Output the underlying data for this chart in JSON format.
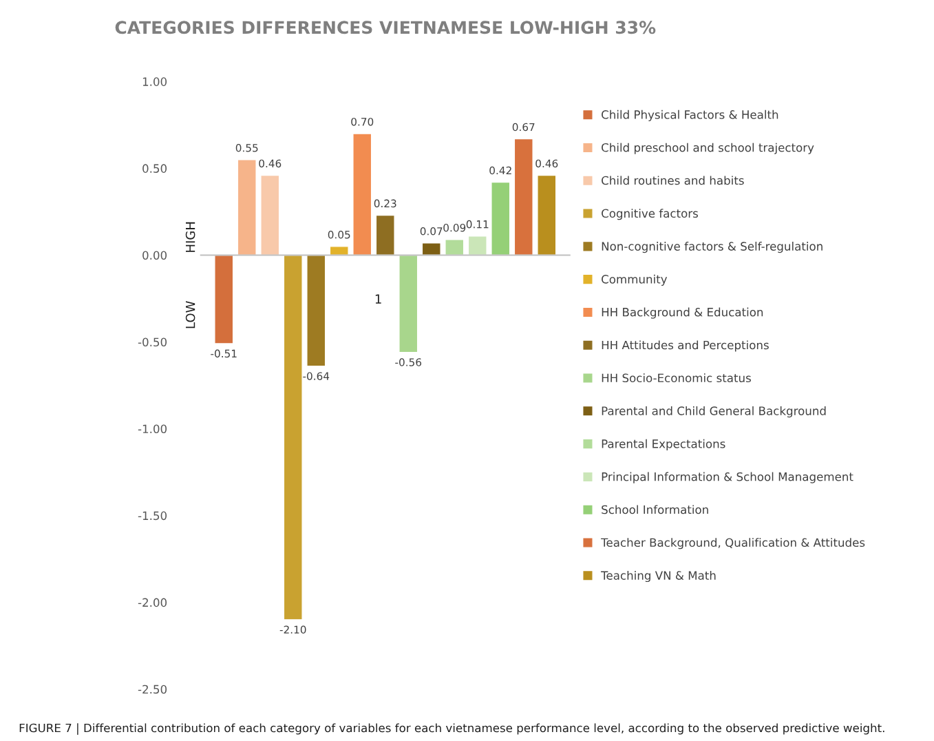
{
  "chart_data": {
    "type": "bar",
    "title": "CATEGORIES DIFFERENCES VIETNAMESE LOW-HIGH 33%",
    "categories": [
      null
    ],
    "series": [
      {
        "name": "Child Physical Factors & Health",
        "color": "#d46f3c",
        "values": [
          -0.51
        ],
        "value_labels": [
          "-0.51"
        ]
      },
      {
        "name": "Child preschool and school trajectory",
        "color": "#f6b48a",
        "values": [
          0.55
        ],
        "value_labels": [
          "0.55"
        ]
      },
      {
        "name": "Child routines and habits",
        "color": "#f8c9aa",
        "values": [
          0.46
        ],
        "value_labels": [
          "0.46"
        ]
      },
      {
        "name": "Cognitive factors",
        "color": "#c9a230",
        "values": [
          -2.1
        ],
        "value_labels": [
          "-2.10"
        ]
      },
      {
        "name": "Non-cognitive factors & Self-regulation",
        "color": "#9e7b22",
        "values": [
          -0.64
        ],
        "value_labels": [
          "-0.64"
        ]
      },
      {
        "name": "Community",
        "color": "#e2b22a",
        "values": [
          0.05
        ],
        "value_labels": [
          "0.05"
        ]
      },
      {
        "name": "HH Background & Education",
        "color": "#f28c50",
        "values": [
          0.7
        ],
        "value_labels": [
          "0.70"
        ]
      },
      {
        "name": "HH Attitudes and Perceptions",
        "color": "#8e6e22",
        "values": [
          0.23
        ],
        "value_labels": [
          "0.23"
        ]
      },
      {
        "name": "HH Socio-Economic status",
        "color": "#a8d68c",
        "values": [
          -0.56
        ],
        "value_labels": [
          "-0.56"
        ]
      },
      {
        "name": "Parental and Child General Background",
        "color": "#7d5f14",
        "values": [
          0.07
        ],
        "value_labels": [
          "0.07"
        ]
      },
      {
        "name": "Parental Expectations",
        "color": "#b2dc9a",
        "values": [
          0.09
        ],
        "value_labels": [
          "0.09"
        ]
      },
      {
        "name": "Principal Information & School Management",
        "color": "#cbe6b8",
        "values": [
          0.11
        ],
        "value_labels": [
          "0.11"
        ]
      },
      {
        "name": "School Information",
        "color": "#95d077",
        "values": [
          0.42
        ],
        "value_labels": [
          "0.42"
        ]
      },
      {
        "name": "Teacher Background, Qualification & Attitudes",
        "color": "#d8713d",
        "values": [
          0.67
        ],
        "value_labels": [
          "0.67"
        ]
      },
      {
        "name": "Teaching VN & Math",
        "color": "#b98f1e",
        "values": [
          0.46
        ],
        "value_labels": [
          "0.46"
        ]
      }
    ],
    "ylim": [
      -2.5,
      1.0
    ],
    "yticks": [
      {
        "value": 1.0,
        "label": "1.00"
      },
      {
        "value": 0.5,
        "label": "0.50"
      },
      {
        "value": 0.0,
        "label": "0.00"
      },
      {
        "value": -0.5,
        "label": "-0.50"
      },
      {
        "value": -1.0,
        "label": "-1.00"
      },
      {
        "value": -1.5,
        "label": "-1.50"
      },
      {
        "value": -2.0,
        "label": "-2.00"
      },
      {
        "value": -2.5,
        "label": "-2.50"
      }
    ],
    "legend": "right",
    "annotations": [
      "HIGH",
      "LOW",
      "1",
      "FIGURE 7 | Differential contribution of each category of variables for each vietnamese performance level, according to the observed predictive weight."
    ]
  }
}
